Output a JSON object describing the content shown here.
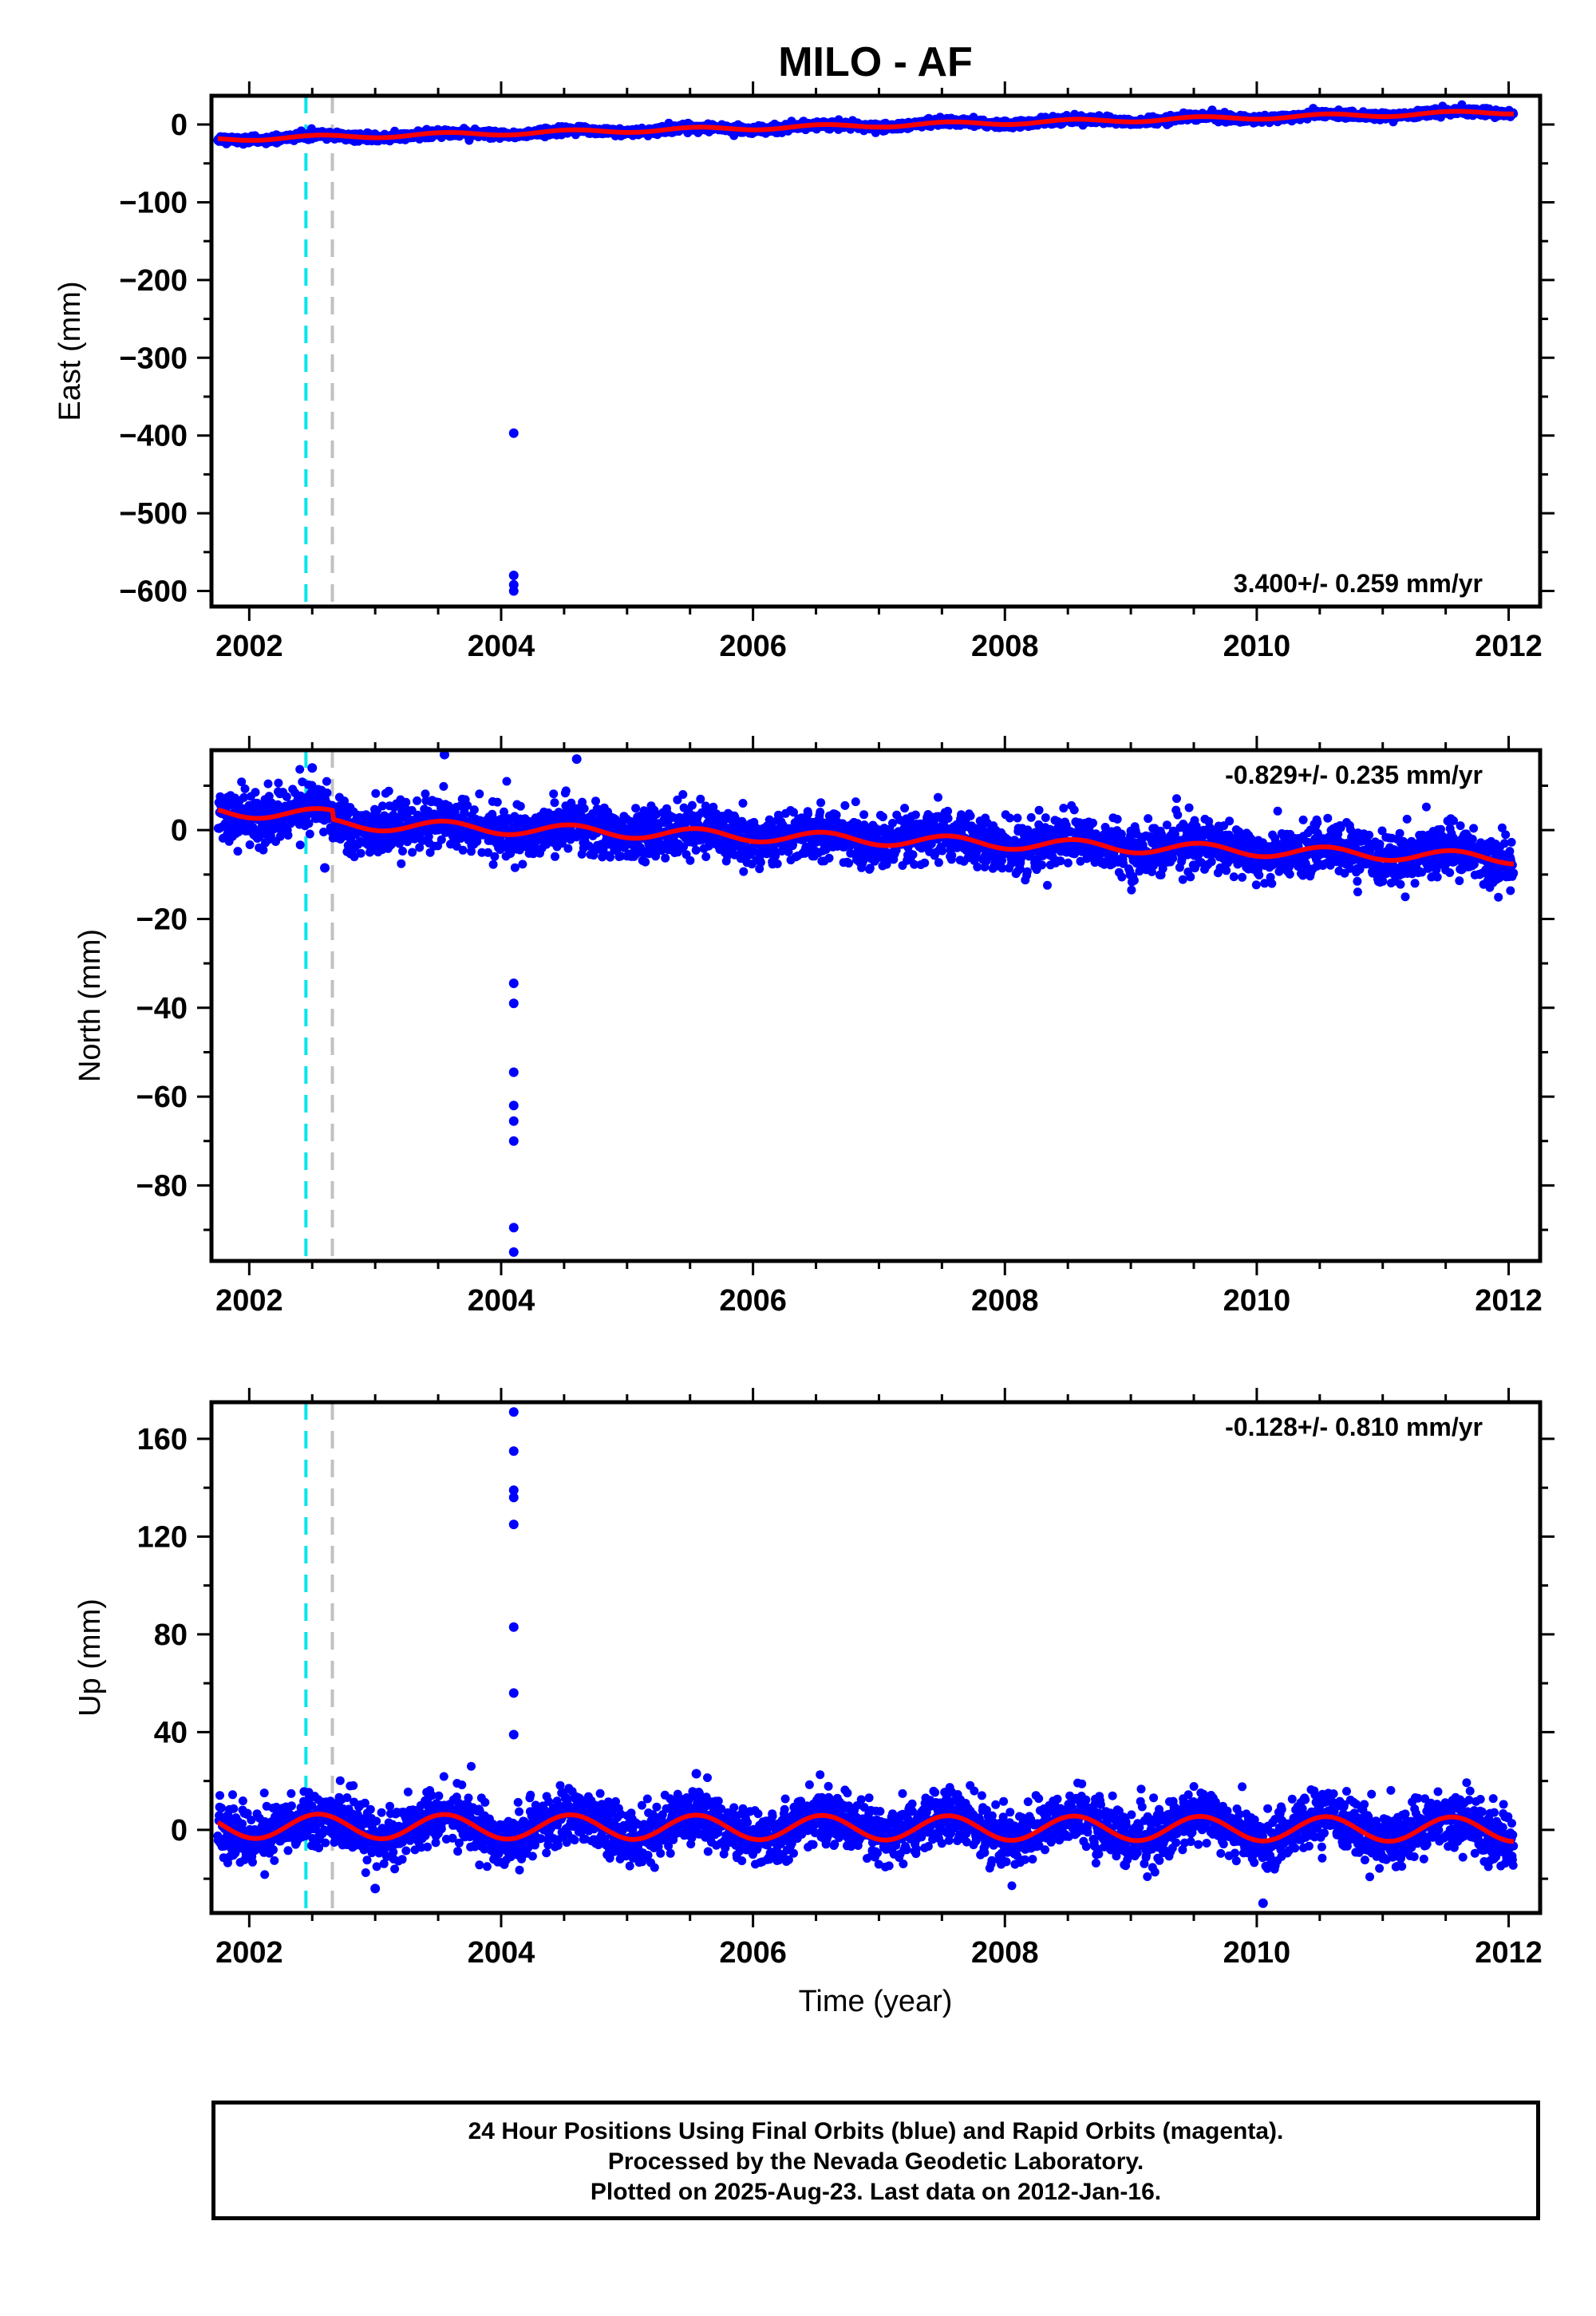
{
  "title": "MILO - AF",
  "xlabel": "Time (year)",
  "footer": {
    "line1": "24 Hour Positions Using Final Orbits (blue) and Rapid Orbits (magenta).",
    "line2": "Processed by the Nevada Geodetic Laboratory.",
    "line3": "Plotted on 2025-Aug-23. Last data on 2012-Jan-16."
  },
  "colors": {
    "final_orbits": "#0000ff",
    "model": "#ff0000",
    "event_cyan": "#00e5ee",
    "event_gray": "#c0c0c0"
  },
  "chart_data": [
    {
      "type": "scatter",
      "component": "east",
      "ylabel": "East (mm)",
      "xlim": [
        2001.7,
        2012.25
      ],
      "ylim": [
        -620,
        37
      ],
      "xticks": [
        2002,
        2004,
        2006,
        2008,
        2010,
        2012
      ],
      "yticks": [
        0,
        -100,
        -200,
        -300,
        -400,
        -500,
        -600
      ],
      "velocity_label": "3.400+/- 0.259 mm/yr",
      "velocity_label_position": "bottom-right",
      "event_lines": [
        {
          "x": 2002.45,
          "color": "cyan"
        },
        {
          "x": 2002.66,
          "color": "gray"
        }
      ],
      "data_range": [
        2001.75,
        2012.04
      ],
      "model": {
        "trend_mm_per_yr": 3.4,
        "value_at_2002": -18,
        "annual_amplitude": 2.5,
        "step": {
          "x": 2002.66,
          "size": 0
        }
      },
      "scatter_sd": 2.3,
      "outliers": [
        {
          "x": 2004.1,
          "y": -397
        },
        {
          "x": 2004.1,
          "y": -580
        },
        {
          "x": 2004.1,
          "y": -592
        },
        {
          "x": 2004.1,
          "y": -600
        }
      ]
    },
    {
      "type": "scatter",
      "component": "north",
      "ylabel": "North (mm)",
      "xlim": [
        2001.7,
        2012.25
      ],
      "ylim": [
        -97,
        18
      ],
      "xticks": [
        2002,
        2004,
        2006,
        2008,
        2010,
        2012
      ],
      "yticks": [
        0,
        -20,
        -40,
        -60,
        -80
      ],
      "velocity_label": "-0.829+/- 0.235 mm/yr",
      "velocity_label_position": "top-right",
      "event_lines": [
        {
          "x": 2002.45,
          "color": "cyan"
        },
        {
          "x": 2002.66,
          "color": "gray"
        }
      ],
      "data_range": [
        2001.75,
        2012.04
      ],
      "model": {
        "trend_mm_per_yr": -0.829,
        "value_at_2002": 4,
        "annual_amplitude": 1.3,
        "step": {
          "x": 2002.66,
          "size": -2
        }
      },
      "scatter_sd": 2.8,
      "outliers": [
        {
          "x": 2004.1,
          "y": -34.5
        },
        {
          "x": 2004.1,
          "y": -39
        },
        {
          "x": 2004.1,
          "y": -54.5
        },
        {
          "x": 2004.1,
          "y": -62
        },
        {
          "x": 2004.1,
          "y": -65.5
        },
        {
          "x": 2004.1,
          "y": -70
        },
        {
          "x": 2004.1,
          "y": -89.5
        },
        {
          "x": 2004.1,
          "y": -95
        },
        {
          "x": 2002.6,
          "y": -8.5
        },
        {
          "x": 2002.5,
          "y": 14
        },
        {
          "x": 2003.55,
          "y": 17
        },
        {
          "x": 2004.6,
          "y": 16
        }
      ]
    },
    {
      "type": "scatter",
      "component": "up",
      "ylabel": "Up (mm)",
      "xlim": [
        2001.7,
        2012.25
      ],
      "ylim": [
        -34,
        175
      ],
      "xticks": [
        2002,
        2004,
        2006,
        2008,
        2010,
        2012
      ],
      "yticks": [
        0,
        40,
        80,
        120,
        160
      ],
      "velocity_label": "-0.128+/- 0.810 mm/yr",
      "velocity_label_position": "top-right",
      "event_lines": [
        {
          "x": 2002.45,
          "color": "cyan"
        },
        {
          "x": 2002.66,
          "color": "gray"
        }
      ],
      "data_range": [
        2001.75,
        2012.04
      ],
      "model": {
        "trend_mm_per_yr": -0.128,
        "value_at_2002": 1.5,
        "annual_amplitude": 5,
        "step": {
          "x": 2002.66,
          "size": 0
        }
      },
      "scatter_sd": 5.5,
      "outliers": [
        {
          "x": 2004.1,
          "y": 171
        },
        {
          "x": 2004.1,
          "y": 155
        },
        {
          "x": 2004.1,
          "y": 139
        },
        {
          "x": 2004.1,
          "y": 136
        },
        {
          "x": 2004.1,
          "y": 125
        },
        {
          "x": 2004.1,
          "y": 83
        },
        {
          "x": 2004.1,
          "y": 56
        },
        {
          "x": 2004.1,
          "y": 39
        },
        {
          "x": 2010.05,
          "y": -30
        },
        {
          "x": 2005.55,
          "y": 23
        },
        {
          "x": 2003.0,
          "y": -24
        }
      ]
    }
  ]
}
